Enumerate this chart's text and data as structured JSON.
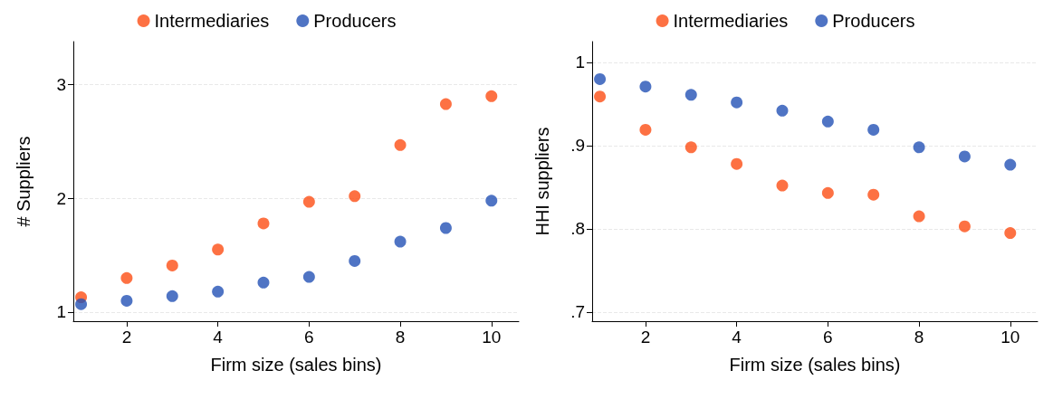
{
  "chart_data": [
    {
      "type": "scatter",
      "xlabel": "Firm size (sales bins)",
      "ylabel": "# Suppliers",
      "x": [
        1,
        2,
        3,
        4,
        5,
        6,
        7,
        8,
        9,
        10
      ],
      "xlim": [
        0.83,
        10.6
      ],
      "xticks": [
        2,
        4,
        6,
        8,
        10
      ],
      "ylim": [
        0.92,
        3.38
      ],
      "yticks": [
        1,
        2,
        3
      ],
      "grid": "y",
      "legend": "top",
      "marker": "circle",
      "series": [
        {
          "name": "Intermediaries",
          "color": "#fc4e14",
          "values": [
            1.13,
            1.3,
            1.41,
            1.55,
            1.78,
            1.97,
            2.02,
            2.47,
            2.83,
            2.9
          ]
        },
        {
          "name": "Producers",
          "color": "#2351b5",
          "values": [
            1.07,
            1.1,
            1.14,
            1.18,
            1.26,
            1.31,
            1.45,
            1.62,
            1.74,
            1.98
          ]
        }
      ]
    },
    {
      "type": "scatter",
      "xlabel": "Firm size (sales bins)",
      "ylabel": "HHI suppliers",
      "x": [
        1,
        2,
        3,
        4,
        5,
        6,
        7,
        8,
        9,
        10
      ],
      "xlim": [
        0.83,
        10.6
      ],
      "xticks": [
        2,
        4,
        6,
        8,
        10
      ],
      "ylim": [
        0.689,
        1.025
      ],
      "yticks": [
        {
          "value": 0.7,
          "label": ".7"
        },
        {
          "value": 0.8,
          "label": ".8"
        },
        {
          "value": 0.9,
          "label": ".9"
        },
        1
      ],
      "grid": "y",
      "legend": "top",
      "marker": "circle",
      "series": [
        {
          "name": "Intermediaries",
          "color": "#fc4e14",
          "values": [
            0.959,
            0.919,
            0.898,
            0.878,
            0.852,
            0.843,
            0.841,
            0.815,
            0.803,
            0.795
          ]
        },
        {
          "name": "Producers",
          "color": "#2351b5",
          "values": [
            0.98,
            0.971,
            0.961,
            0.952,
            0.942,
            0.929,
            0.919,
            0.898,
            0.887,
            0.877
          ]
        }
      ]
    }
  ]
}
